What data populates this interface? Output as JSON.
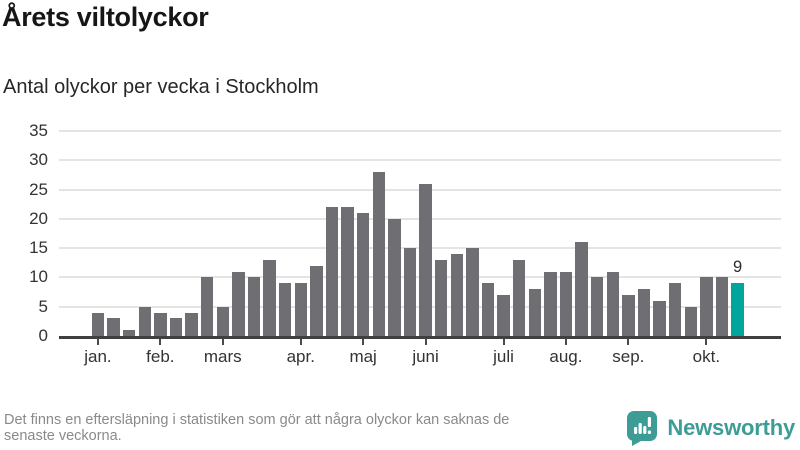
{
  "chart_data": {
    "type": "bar",
    "title": "Årets viltolyckor",
    "subtitle": "Antal olyckor per vecka i Stockholm",
    "x_unit": "vecka",
    "values": [
      4,
      3,
      1,
      5,
      4,
      3,
      4,
      10,
      5,
      11,
      10,
      13,
      9,
      9,
      12,
      22,
      22,
      21,
      28,
      20,
      15,
      26,
      13,
      14,
      15,
      9,
      7,
      13,
      8,
      11,
      11,
      16,
      10,
      11,
      7,
      8,
      6,
      9,
      5,
      10,
      10,
      9
    ],
    "leading_empty_slots": 2,
    "total_slots": 44,
    "ylim": [
      0,
      35
    ],
    "yticks": [
      0,
      5,
      10,
      15,
      20,
      25,
      30,
      35
    ],
    "grid": true,
    "legend": "none",
    "month_ticks": [
      {
        "label": "jan.",
        "slot": 2
      },
      {
        "label": "feb.",
        "slot": 6
      },
      {
        "label": "mars",
        "slot": 10
      },
      {
        "label": "apr.",
        "slot": 15
      },
      {
        "label": "maj",
        "slot": 19
      },
      {
        "label": "juni",
        "slot": 23
      },
      {
        "label": "juli",
        "slot": 28
      },
      {
        "label": "aug.",
        "slot": 32
      },
      {
        "label": "sep.",
        "slot": 36
      },
      {
        "label": "okt.",
        "slot": 41
      }
    ],
    "highlight_last_bar": true,
    "last_value_label": "9",
    "colors": {
      "bar": "#6e6e73",
      "highlight": "#00a59b",
      "grid": "#e4e4e4",
      "axis": "#3f3f3f"
    }
  },
  "footer": {
    "line1": "Det finns en eftersläpning i statistiken som gör att några olyckor kan saknas de",
    "line2": "senaste veckorna."
  },
  "brand": {
    "name": "Newsworthy",
    "color": "#3e9c96",
    "icon": "speech-bubble-bar-chart-icon"
  }
}
